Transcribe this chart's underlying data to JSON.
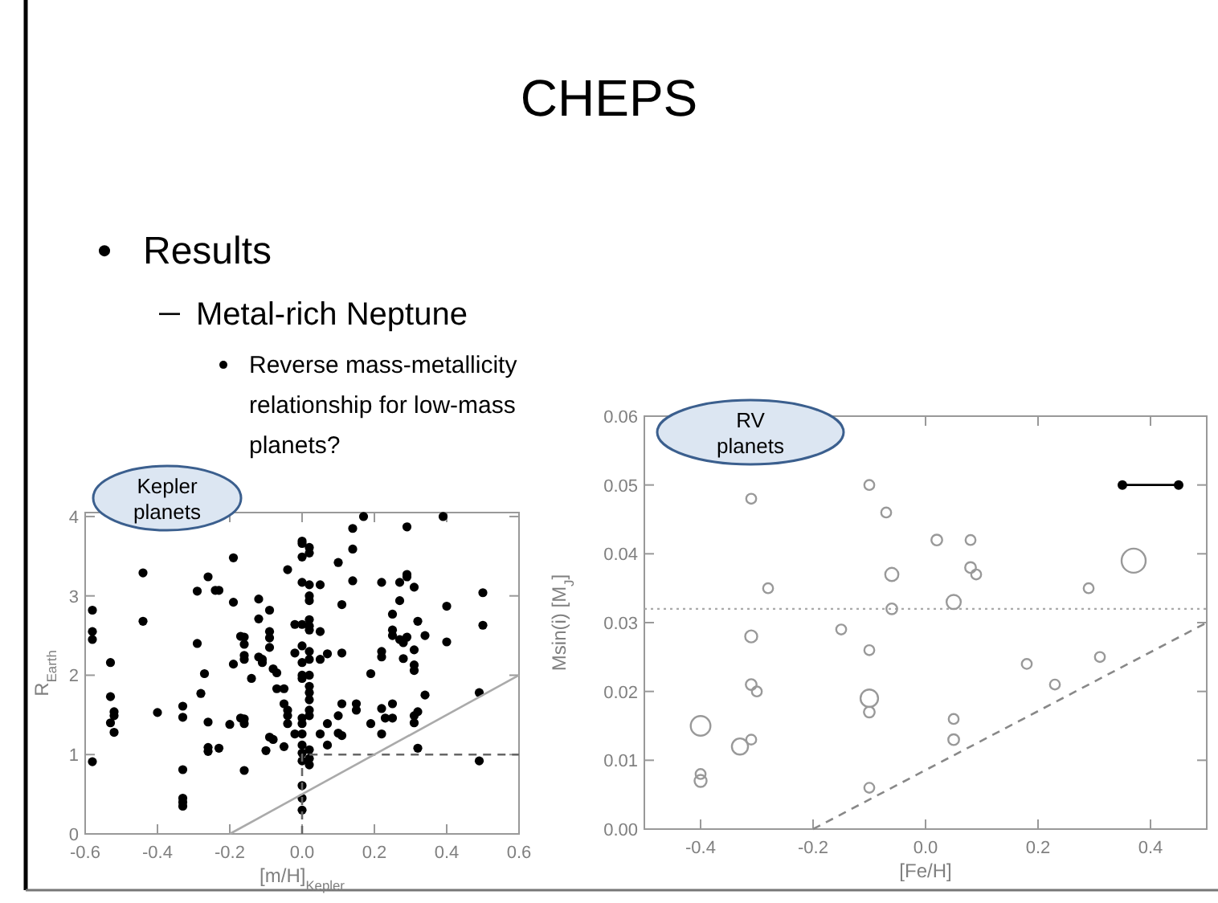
{
  "chart_data": [
    {
      "type": "scatter",
      "title": "CHEPS",
      "xlabel": "[m/H]$_{Kepler}$",
      "ylabel": "R$_{Earth}$",
      "annotations": [
        "Results",
        "Metal-rich Neptune",
        "Reverse mass-metallicity relationship for low-mass planets?",
        "Kepler planets"
      ],
      "xlim": [
        -0.6,
        0.6
      ],
      "ylim": [
        0,
        4.05
      ],
      "xticks": [
        -0.6,
        -0.4,
        -0.2,
        {
          "value": 0,
          "label": "0.0"
        },
        0.2,
        0.4,
        0.6
      ],
      "yticks": [
        0,
        1,
        2,
        3,
        4
      ],
      "grid": false,
      "marker": "circle",
      "series": [
        {
          "color": "#000000",
          "x": [
            -0.58,
            -0.58,
            -0.58,
            -0.58,
            -0.53,
            -0.53,
            -0.52,
            -0.52,
            -0.53,
            -0.52,
            -0.44,
            -0.44,
            -0.4,
            -0.33,
            -0.33,
            -0.33,
            -0.33,
            -0.33,
            -0.33,
            -0.29,
            -0.29,
            -0.28,
            -0.27,
            -0.26,
            -0.26,
            -0.26,
            -0.26,
            -0.24,
            -0.23,
            -0.23,
            -0.2,
            -0.19,
            -0.19,
            -0.19,
            -0.17,
            -0.17,
            -0.16,
            -0.16,
            -0.16,
            -0.16,
            -0.16,
            -0.16,
            -0.16,
            -0.14,
            -0.12,
            -0.12,
            -0.12,
            -0.11,
            -0.11,
            -0.1,
            -0.09,
            -0.09,
            -0.09,
            -0.09,
            -0.09,
            -0.08,
            -0.08,
            -0.07,
            -0.07,
            -0.05,
            -0.05,
            -0.05,
            -0.04,
            -0.04,
            -0.04,
            -0.04,
            -0.02,
            -0.02,
            -0.02,
            0,
            0,
            0,
            0,
            0,
            0,
            0,
            0,
            0,
            0,
            0,
            0,
            0,
            0,
            0,
            0,
            0,
            0,
            0.02,
            0.02,
            0.02,
            0.02,
            0.02,
            0.02,
            0.02,
            0.02,
            0.02,
            0.02,
            0.02,
            0.02,
            0.02,
            0.02,
            0.02,
            0.02,
            0.02,
            0.02,
            0.02,
            0.05,
            0.05,
            0.05,
            0.05,
            0.07,
            0.07,
            0.07,
            0.1,
            0.1,
            0.1,
            0.11,
            0.11,
            0.11,
            0.11,
            0.14,
            0.14,
            0.14,
            0.15,
            0.15,
            0.17,
            0.19,
            0.19,
            0.22,
            0.22,
            0.22,
            0.22,
            0.22,
            0.23,
            0.25,
            0.25,
            0.25,
            0.25,
            0.25,
            0.27,
            0.27,
            0.27,
            0.28,
            0.28,
            0.29,
            0.29,
            0.29,
            0.29,
            0.31,
            0.31,
            0.31,
            0.31,
            0.31,
            0.31,
            0.32,
            0.32,
            0.32,
            0.34,
            0.34,
            0.39,
            0.4,
            0.4,
            0.49,
            0.49,
            0.5,
            0.5
          ],
          "values": [
            2.82,
            2.55,
            2.45,
            0.91,
            2.16,
            1.73,
            1.54,
            1.49,
            1.4,
            1.28,
            3.29,
            2.68,
            1.53,
            1.61,
            1.47,
            0.81,
            0.45,
            0.4,
            0.35,
            3.06,
            2.4,
            1.77,
            2.02,
            3.24,
            1.41,
            1.09,
            1.04,
            3.07,
            3.07,
            1.08,
            1.38,
            3.48,
            2.92,
            2.14,
            2.49,
            1.46,
            2.48,
            2.39,
            2.25,
            2.2,
            1.45,
            1.39,
            0.8,
            1.96,
            2.96,
            2.71,
            2.23,
            2.2,
            2.16,
            1.05,
            2.82,
            2.55,
            2.47,
            2.35,
            1.22,
            1.19,
            2.08,
            2.03,
            1.83,
            1.64,
            1.83,
            1.1,
            1.49,
            1.56,
            3.33,
            1.39,
            2.64,
            2.28,
            1.26,
            3.69,
            3.66,
            3.49,
            3.17,
            2.64,
            2.37,
            2.16,
            2,
            1.96,
            1.46,
            1.39,
            1.26,
            1.12,
            1.02,
            0.92,
            0.61,
            0.45,
            0.3,
            3.61,
            3.54,
            3.14,
            3,
            2.94,
            2.7,
            2.62,
            2.57,
            2.3,
            2.2,
            2,
            1.86,
            1.78,
            1.69,
            1.56,
            1.49,
            1.06,
            0.95,
            0.87,
            3.14,
            2.2,
            2.55,
            1.26,
            2.27,
            1.12,
            1.39,
            3.42,
            1.49,
            1.27,
            2.89,
            2.28,
            1.64,
            1.24,
            3.85,
            3.59,
            3.19,
            1.64,
            1.56,
            4,
            2.02,
            1.39,
            3.17,
            2.3,
            2.23,
            1.58,
            1.26,
            1.46,
            2.77,
            2.57,
            2.5,
            1.64,
            1.46,
            3.17,
            2.94,
            2.45,
            2.41,
            2.21,
            3.87,
            3.27,
            3.24,
            2.48,
            3.11,
            2.32,
            2.13,
            2.06,
            1.49,
            1.4,
            2.68,
            1.54,
            1.08,
            2.5,
            1.75,
            4,
            2.87,
            2.42,
            1.78,
            0.92,
            3.04,
            2.63
          ]
        },
        {
          "type": "line",
          "color": "#666666",
          "line_style": "dashed",
          "marker": "none",
          "x": [
            0,
            0,
            0.6
          ],
          "values": [
            0,
            1,
            1
          ]
        },
        {
          "type": "line",
          "color": "#aaaaaa",
          "line_style": "solid",
          "marker": "none",
          "x": [
            -0.2,
            0.6
          ],
          "values": [
            0,
            2
          ]
        }
      ]
    },
    {
      "type": "bubble",
      "xlabel": "[Fe/H]",
      "ylabel": "Msin(i) [M$_{J}$]",
      "annotations": [
        "RV planets"
      ],
      "xlim": [
        -0.5,
        0.5
      ],
      "ylim": [
        0,
        0.06
      ],
      "xticks": [
        -0.4,
        -0.2,
        {
          "value": 0,
          "label": "0.0"
        },
        0.2,
        0.4
      ],
      "yticks": [
        {
          "value": 0,
          "label": "0.00"
        },
        0.01,
        0.02,
        0.03,
        0.04,
        0.05,
        0.06
      ],
      "grid": false,
      "marker": "circle",
      "ref_lines": [
        {
          "axis": "y",
          "value": 0.032,
          "color": "#aaaaaa",
          "line_style": "dotted"
        }
      ],
      "series": [
        {
          "color": "#999999",
          "x": [
            -0.31,
            -0.4,
            -0.4,
            -0.4,
            -0.33,
            -0.31,
            -0.31,
            -0.3,
            -0.31,
            -0.28,
            -0.15,
            -0.1,
            -0.1,
            -0.1,
            -0.1,
            -0.1,
            -0.07,
            -0.06,
            -0.06,
            0.05,
            0.05,
            0.05,
            0.02,
            0.08,
            0.08,
            0.09,
            0.18,
            0.23,
            0.29,
            0.31,
            0.37
          ],
          "values": [
            0.048,
            0.015,
            0.008,
            0.007,
            0.012,
            0.013,
            0.021,
            0.02,
            0.028,
            0.035,
            0.029,
            0.05,
            0.026,
            0.019,
            0.017,
            0.006,
            0.046,
            0.037,
            0.032,
            0.033,
            0.016,
            0.013,
            0.042,
            0.042,
            0.038,
            0.037,
            0.024,
            0.021,
            0.035,
            0.025,
            0.039
          ],
          "sizes": [
            0.17,
            0.67,
            0.17,
            0.25,
            0.45,
            0.17,
            0.2,
            0.17,
            0.25,
            0.17,
            0.17,
            0.17,
            0.17,
            0.53,
            0.2,
            0.17,
            0.17,
            0.3,
            0.2,
            0.35,
            0.17,
            0.2,
            0.2,
            0.17,
            0.2,
            0.17,
            0.17,
            0.17,
            0.17,
            0.17,
            1
          ]
        },
        {
          "type": "line",
          "color": "#888888",
          "line_style": "dashed",
          "marker": "none",
          "x": [
            -0.2,
            0.5
          ],
          "values": [
            0,
            0.03
          ]
        },
        {
          "type": "line",
          "color": "#000000",
          "line_style": "solid",
          "marker": "circle",
          "x": [
            0.35,
            0.45
          ],
          "values": [
            0.05,
            0.05
          ]
        }
      ]
    }
  ]
}
